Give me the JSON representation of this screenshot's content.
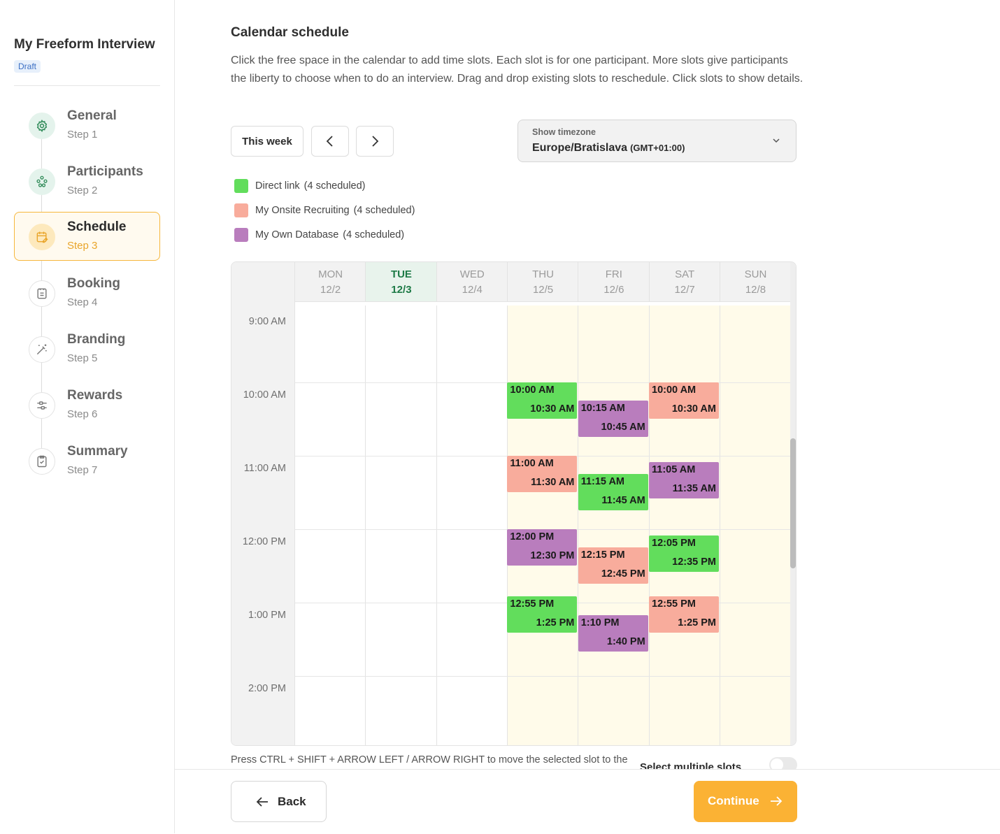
{
  "sidebar": {
    "project_title": "My Freeform Interview",
    "status_badge": "Draft",
    "steps": [
      {
        "label": "General",
        "sub": "Step 1",
        "icon": "gear-icon",
        "state": "done"
      },
      {
        "label": "Participants",
        "sub": "Step 2",
        "icon": "people-icon",
        "state": "done"
      },
      {
        "label": "Schedule",
        "sub": "Step 3",
        "icon": "calendar-edit-icon",
        "state": "active"
      },
      {
        "label": "Booking",
        "sub": "Step 4",
        "icon": "booking-icon",
        "state": "todo"
      },
      {
        "label": "Branding",
        "sub": "Step 5",
        "icon": "magic-wand-icon",
        "state": "todo"
      },
      {
        "label": "Rewards",
        "sub": "Step 6",
        "icon": "sliders-icon",
        "state": "todo"
      },
      {
        "label": "Summary",
        "sub": "Step 7",
        "icon": "clipboard-check-icon",
        "state": "todo"
      }
    ]
  },
  "main": {
    "heading": "Calendar schedule",
    "description": "Click the free space in the calendar to add time slots. Each slot is for one participant. More slots give participants the liberty to choose when to do an interview. Drag and drop existing slots to reschedule. Click slots to show details.",
    "this_week_label": "This week",
    "timezone": {
      "label": "Show timezone",
      "value": "Europe/Bratislava",
      "offset": "(GMT+01:00)"
    },
    "legend": [
      {
        "name": "Direct link",
        "count": "(4 scheduled)",
        "color": "#62dd5c"
      },
      {
        "name": "My Onsite Recruiting",
        "count": "(4 scheduled)",
        "color": "#f8ac9c"
      },
      {
        "name": "My Own Database",
        "count": "(4 scheduled)",
        "color": "#b97dbd"
      }
    ],
    "hint": "Press CTRL + SHIFT + ARROW LEFT / ARROW RIGHT to move the selected slot to the",
    "select_multiple_label": "Select multiple slots"
  },
  "calendar": {
    "days": [
      {
        "name": "MON",
        "date": "12/2",
        "today": false,
        "available": false
      },
      {
        "name": "TUE",
        "date": "12/3",
        "today": true,
        "available": false
      },
      {
        "name": "WED",
        "date": "12/4",
        "today": false,
        "available": false
      },
      {
        "name": "THU",
        "date": "12/5",
        "today": false,
        "available": true
      },
      {
        "name": "FRI",
        "date": "12/6",
        "today": false,
        "available": true
      },
      {
        "name": "SAT",
        "date": "12/7",
        "today": false,
        "available": true
      },
      {
        "name": "SUN",
        "date": "12/8",
        "today": false,
        "available": true
      }
    ],
    "hours": [
      "9:00 AM",
      "10:00 AM",
      "11:00 AM",
      "12:00 PM",
      "1:00 PM",
      "2:00 PM"
    ],
    "first_hour": 9,
    "slots": [
      {
        "day": 3,
        "start": "10:00 AM",
        "end": "10:30 AM",
        "start_h": 10.0,
        "source": 0
      },
      {
        "day": 3,
        "start": "11:00 AM",
        "end": "11:30 AM",
        "start_h": 11.0,
        "source": 1
      },
      {
        "day": 3,
        "start": "12:00 PM",
        "end": "12:30 PM",
        "start_h": 12.0,
        "source": 2
      },
      {
        "day": 3,
        "start": "12:55 PM",
        "end": "1:25 PM",
        "start_h": 12.9167,
        "source": 0
      },
      {
        "day": 4,
        "start": "10:15 AM",
        "end": "10:45 AM",
        "start_h": 10.25,
        "source": 2
      },
      {
        "day": 4,
        "start": "11:15 AM",
        "end": "11:45 AM",
        "start_h": 11.25,
        "source": 0
      },
      {
        "day": 4,
        "start": "12:15 PM",
        "end": "12:45 PM",
        "start_h": 12.25,
        "source": 1
      },
      {
        "day": 4,
        "start": "1:10 PM",
        "end": "1:40 PM",
        "start_h": 13.1667,
        "source": 2
      },
      {
        "day": 5,
        "start": "10:00 AM",
        "end": "10:30 AM",
        "start_h": 10.0,
        "source": 1
      },
      {
        "day": 5,
        "start": "11:05 AM",
        "end": "11:35 AM",
        "start_h": 11.0833,
        "source": 2
      },
      {
        "day": 5,
        "start": "12:05 PM",
        "end": "12:35 PM",
        "start_h": 12.0833,
        "source": 0
      },
      {
        "day": 5,
        "start": "12:55 PM",
        "end": "1:25 PM",
        "start_h": 12.9167,
        "source": 1
      }
    ]
  },
  "footer": {
    "back_label": "Back",
    "continue_label": "Continue"
  }
}
